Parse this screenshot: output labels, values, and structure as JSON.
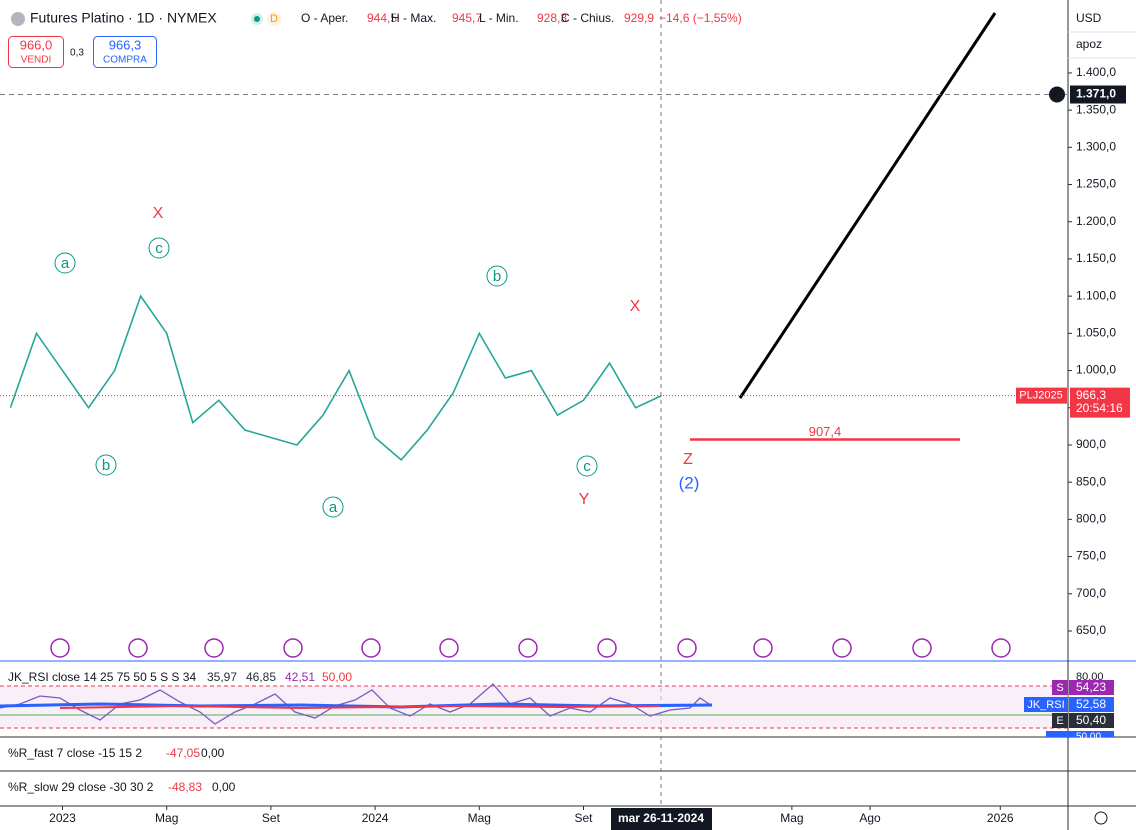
{
  "header": {
    "title": "Futures Platino · 1D · NYMEX",
    "open_label": "O - Aper.",
    "open": "944,5",
    "high_label": "H - Max.",
    "high": "945,7",
    "low_label": "L - Min.",
    "low": "928,3",
    "close_label": "C - Chius.",
    "close": "929,9",
    "change": "−14,6 (−1,55%)",
    "interval_badge": "D"
  },
  "trade": {
    "sell": "966,0",
    "sell_label": "VENDI",
    "spread": "0,3",
    "buy": "966,3",
    "buy_label": "COMPRA"
  },
  "scale": {
    "currency": "USD",
    "mode": "apoz"
  },
  "waves": [
    "a",
    "b",
    "c",
    "X",
    "a",
    "b",
    "c",
    "Y",
    "X",
    "Z",
    "(2)"
  ],
  "crosshair_date": "mar 26-11-2024",
  "indicators": {
    "rsi": {
      "label": "JK_RSI close 14 25 75 50 5 S S 34",
      "v1": "35,97",
      "v2": "46,85",
      "v3": "42,51",
      "v4": "50,00",
      "top": "80,00",
      "s_tag": "S",
      "s_value": "54,23",
      "rsi_tag": "JK_RSI",
      "rsi_value": "52,58",
      "e_tag": "E",
      "e_value": "50,40",
      "bottom": "50,00"
    },
    "r_fast": {
      "label": "%R_fast 7 close -15 15 2",
      "v1": "-47,05",
      "v2": "0,00"
    },
    "r_slow": {
      "label": "%R_slow 29 close -30 30 2",
      "v1": "-48,83",
      "v2": "0,00"
    }
  },
  "chart_data": {
    "type": "line",
    "x": [
      "2022-11",
      "2022-12",
      "2023-01",
      "2023-02",
      "2023-03",
      "2023-04",
      "2023-05",
      "2023-06",
      "2023-07",
      "2023-08",
      "2023-09",
      "2023-10",
      "2023-11",
      "2023-12",
      "2024-01",
      "2024-02",
      "2024-03",
      "2024-04",
      "2024-05",
      "2024-06",
      "2024-07",
      "2024-08",
      "2024-09",
      "2024-10",
      "2024-11",
      "2024-12"
    ],
    "series": [
      {
        "name": "PLJ2025",
        "color": "#26a69a",
        "values": [
          950,
          1050,
          1000,
          950,
          1000,
          1100,
          1050,
          930,
          960,
          920,
          910,
          900,
          940,
          1000,
          910,
          880,
          920,
          970,
          1050,
          990,
          1000,
          940,
          960,
          1010,
          950,
          966.3
        ]
      }
    ],
    "xlim": [
      "2022-11",
      "2026-04"
    ],
    "xticks": [
      {
        "value": "2023-01",
        "label": "2023"
      },
      {
        "value": "2023-05",
        "label": "Mag"
      },
      {
        "value": "2023-09",
        "label": "Set"
      },
      {
        "value": "2024-01",
        "label": "2024"
      },
      {
        "value": "2024-05",
        "label": "Mag"
      },
      {
        "value": "2024-09",
        "label": "Set"
      },
      {
        "value": "2025-05",
        "label": "Mag"
      },
      {
        "value": "2025-08",
        "label": "Ago"
      },
      {
        "value": "2026-01",
        "label": "2026"
      }
    ],
    "ylim": [
      611,
      1498
    ],
    "yticks": [
      {
        "value": 650,
        "label": "650,0"
      },
      {
        "value": 700,
        "label": "700,0"
      },
      {
        "value": 750,
        "label": "750,0"
      },
      {
        "value": 800,
        "label": "800,0"
      },
      {
        "value": 850,
        "label": "850,0"
      },
      {
        "value": 900,
        "label": "900,0"
      },
      {
        "value": 950,
        "label": "950,0"
      },
      {
        "value": 1000,
        "label": "1.000,0"
      },
      {
        "value": 1050,
        "label": "1.050,0"
      },
      {
        "value": 1100,
        "label": "1.100,0"
      },
      {
        "value": 1150,
        "label": "1.150,0"
      },
      {
        "value": 1200,
        "label": "1.200,0"
      },
      {
        "value": 1250,
        "label": "1.250,0"
      },
      {
        "value": 1300,
        "label": "1.300,0"
      },
      {
        "value": 1350,
        "label": "1.350,0"
      },
      {
        "value": 1400,
        "label": "1.400,0"
      }
    ],
    "grid": false,
    "support": {
      "value": 907.4,
      "label": "907,4"
    },
    "target": {
      "value": 1371,
      "label": "1.371,0"
    },
    "last": {
      "value": 966.3,
      "label": "966,3",
      "symbol": "PLJ2025",
      "countdown": "20:54:16"
    }
  }
}
